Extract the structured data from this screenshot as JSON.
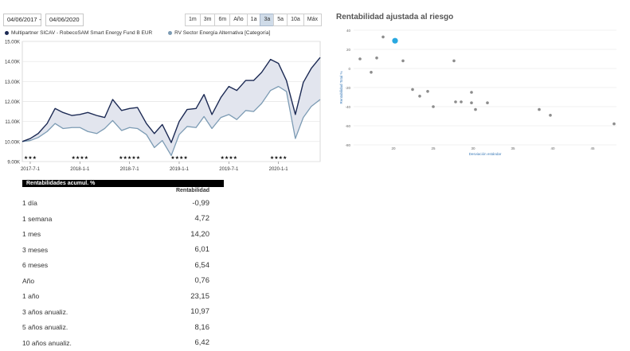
{
  "date_range": {
    "start": "04/06/2017",
    "separator": "-",
    "end": "04/06/2020"
  },
  "range_buttons": [
    {
      "label": "1m",
      "active": false
    },
    {
      "label": "3m",
      "active": false
    },
    {
      "label": "6m",
      "active": false
    },
    {
      "label": "Año",
      "active": false
    },
    {
      "label": "1a",
      "active": false
    },
    {
      "label": "3a",
      "active": true
    },
    {
      "label": "5a",
      "active": false
    },
    {
      "label": "10a",
      "active": false
    },
    {
      "label": "Máx",
      "active": false
    }
  ],
  "legend": [
    {
      "label": "Multipartner SICAV - RobecoSAM Smart Energy Fund B EUR",
      "color": "#1c2a54"
    },
    {
      "label": "RV Sector Energía Alternativa [Categoría]",
      "color": "#7c9bb4"
    }
  ],
  "chart_data": [
    {
      "type": "line",
      "title": "",
      "xlabel": "",
      "ylabel": "",
      "y_tick_labels": [
        "9.00K",
        "10.00K",
        "11.00K",
        "12.00K",
        "13.00K",
        "14.00K",
        "15.00K"
      ],
      "y_ticks": [
        9000,
        10000,
        11000,
        12000,
        13000,
        14000,
        15000
      ],
      "ylim": [
        9000,
        15000
      ],
      "x_tick_labels": [
        "2017-7-1",
        "2018-1-1",
        "2018-7-1",
        "2019-1-1",
        "2019-7-1",
        "2020-1-1"
      ],
      "x_ticks": [
        2017.5,
        2018.0,
        2018.5,
        2019.0,
        2019.5,
        2020.0
      ],
      "xlim": [
        2017.42,
        2020.42
      ],
      "ratings": [
        {
          "x": 2017.5,
          "label": "★★★"
        },
        {
          "x": 2018.0,
          "label": "★★★★"
        },
        {
          "x": 2018.5,
          "label": "★★★★★"
        },
        {
          "x": 2019.0,
          "label": "★★★★"
        },
        {
          "x": 2019.5,
          "label": "★★★★"
        },
        {
          "x": 2020.0,
          "label": "★★★★"
        }
      ],
      "series": [
        {
          "name": "Multipartner SICAV - RobecoSAM Smart Energy Fund B EUR",
          "color": "#1c2a54",
          "x": [
            2017.42,
            2017.5,
            2017.58,
            2017.67,
            2017.75,
            2017.83,
            2017.92,
            2018.0,
            2018.08,
            2018.17,
            2018.25,
            2018.33,
            2018.42,
            2018.5,
            2018.58,
            2018.67,
            2018.75,
            2018.83,
            2018.92,
            2019.0,
            2019.08,
            2019.17,
            2019.25,
            2019.33,
            2019.42,
            2019.5,
            2019.58,
            2019.67,
            2019.75,
            2019.83,
            2019.92,
            2020.0,
            2020.08,
            2020.17,
            2020.25,
            2020.33,
            2020.42
          ],
          "values": [
            10000,
            10150,
            10400,
            10900,
            11650,
            11450,
            11300,
            11350,
            11450,
            11300,
            11200,
            12100,
            11550,
            11650,
            11700,
            10900,
            10400,
            10850,
            9950,
            11000,
            11600,
            11650,
            12350,
            11350,
            12200,
            12750,
            12550,
            13050,
            13050,
            13450,
            14100,
            13900,
            13050,
            11350,
            12950,
            13650,
            14200
          ]
        },
        {
          "name": "RV Sector Energía Alternativa [Categoría]",
          "color": "#7c9bb4",
          "x": [
            2017.42,
            2017.5,
            2017.58,
            2017.67,
            2017.75,
            2017.83,
            2017.92,
            2018.0,
            2018.08,
            2018.17,
            2018.25,
            2018.33,
            2018.42,
            2018.5,
            2018.58,
            2018.67,
            2018.75,
            2018.83,
            2018.92,
            2019.0,
            2019.08,
            2019.17,
            2019.25,
            2019.33,
            2019.42,
            2019.5,
            2019.58,
            2019.67,
            2019.75,
            2019.83,
            2019.92,
            2020.0,
            2020.08,
            2020.17,
            2020.25,
            2020.33,
            2020.42
          ],
          "values": [
            10000,
            10050,
            10200,
            10500,
            10900,
            10650,
            10700,
            10700,
            10500,
            10400,
            10650,
            11050,
            10550,
            10700,
            10650,
            10350,
            9700,
            10050,
            9300,
            10350,
            10750,
            10700,
            11250,
            10650,
            11200,
            11350,
            11100,
            11550,
            11500,
            11900,
            12550,
            12750,
            12500,
            10150,
            11200,
            11750,
            12100
          ]
        }
      ]
    },
    {
      "type": "scatter",
      "title": "Rentabilidad ajustada al riesgo",
      "xlabel": "Desviación estándar",
      "ylabel": "Rentabilidad Total %",
      "x_ticks": [
        20,
        25,
        30,
        35,
        40,
        45
      ],
      "y_ticks": [
        40,
        20,
        0,
        -20,
        -40,
        -60,
        -80
      ],
      "xlim": [
        15,
        48
      ],
      "ylim": [
        -80,
        40
      ],
      "grid": true,
      "points": [
        {
          "x": 15.8,
          "y": 10
        },
        {
          "x": 17.2,
          "y": -4
        },
        {
          "x": 17.9,
          "y": 11
        },
        {
          "x": 18.7,
          "y": 33
        },
        {
          "x": 21.2,
          "y": 8
        },
        {
          "x": 22.4,
          "y": -22
        },
        {
          "x": 23.3,
          "y": -29
        },
        {
          "x": 24.3,
          "y": -24
        },
        {
          "x": 25.0,
          "y": -40
        },
        {
          "x": 27.6,
          "y": 8
        },
        {
          "x": 27.8,
          "y": -35
        },
        {
          "x": 28.5,
          "y": -35
        },
        {
          "x": 29.8,
          "y": -36
        },
        {
          "x": 29.8,
          "y": -25
        },
        {
          "x": 30.3,
          "y": -43
        },
        {
          "x": 31.8,
          "y": -36
        },
        {
          "x": 38.3,
          "y": -43
        },
        {
          "x": 39.7,
          "y": -49
        },
        {
          "x": 47.7,
          "y": -58
        }
      ],
      "highlight": {
        "x": 20.2,
        "y": 29,
        "color": "#29a8e0"
      },
      "point_color": "#8c8c8c"
    }
  ],
  "returns_table": {
    "title": "Rentabilidades acumul. %",
    "column": "Rentabilidad",
    "rows": [
      {
        "label": "1 día",
        "value": "-0,99"
      },
      {
        "label": "1 semana",
        "value": "4,72"
      },
      {
        "label": "1 mes",
        "value": "14,20"
      },
      {
        "label": "3 meses",
        "value": "6,01"
      },
      {
        "label": "6 meses",
        "value": "6,54"
      },
      {
        "label": "Año",
        "value": "0,76"
      },
      {
        "label": "1 año",
        "value": "23,15"
      },
      {
        "label": "3 años anualiz.",
        "value": "10,97"
      },
      {
        "label": "5 años anualiz.",
        "value": "8,16"
      },
      {
        "label": "10 años anualiz.",
        "value": "6,42"
      }
    ]
  }
}
